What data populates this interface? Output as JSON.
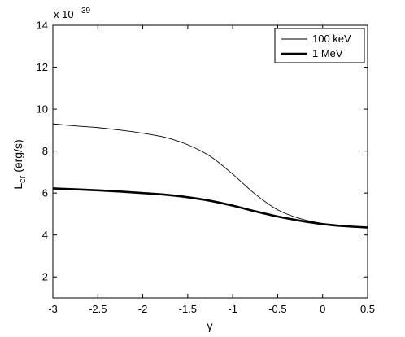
{
  "chart_data": {
    "type": "line",
    "title": "",
    "xlabel": "γ",
    "ylabel_main": "L",
    "ylabel_sub": "cr",
    "ylabel_unit": " (erg/s)",
    "y_multiplier": "x 10",
    "y_multiplier_exp": "39",
    "xlim": [
      -3,
      0.5
    ],
    "ylim": [
      1,
      14
    ],
    "xticks": [
      -3,
      -2.5,
      -2,
      -1.5,
      -1,
      -0.5,
      0,
      0.5
    ],
    "xtick_labels": [
      "-3",
      "-2.5",
      "-2",
      "-1.5",
      "-1",
      "-0.5",
      "0",
      "0.5"
    ],
    "yticks": [
      2,
      4,
      6,
      8,
      10,
      12,
      14
    ],
    "ytick_labels": [
      "2",
      "4",
      "6",
      "8",
      "10",
      "12",
      "14"
    ],
    "grid": false,
    "legend_position": "top-right",
    "series": [
      {
        "name": "100 keV",
        "line_width": "thin",
        "x": [
          -3,
          -2.75,
          -2.5,
          -2.25,
          -2,
          -1.75,
          -1.5,
          -1.25,
          -1,
          -0.75,
          -0.5,
          -0.25,
          0,
          0.25,
          0.5
        ],
        "y": [
          9.3,
          9.2,
          9.12,
          9.0,
          8.85,
          8.65,
          8.3,
          7.75,
          6.9,
          5.95,
          5.2,
          4.78,
          4.55,
          4.42,
          4.37
        ]
      },
      {
        "name": "1 MeV",
        "line_width": "thick",
        "x": [
          -3,
          -2.75,
          -2.5,
          -2.25,
          -2,
          -1.75,
          -1.5,
          -1.25,
          -1,
          -0.75,
          -0.5,
          -0.25,
          0,
          0.25,
          0.5
        ],
        "y": [
          6.22,
          6.18,
          6.13,
          6.07,
          6.0,
          5.92,
          5.8,
          5.63,
          5.4,
          5.13,
          4.88,
          4.68,
          4.52,
          4.42,
          4.36
        ]
      }
    ]
  }
}
